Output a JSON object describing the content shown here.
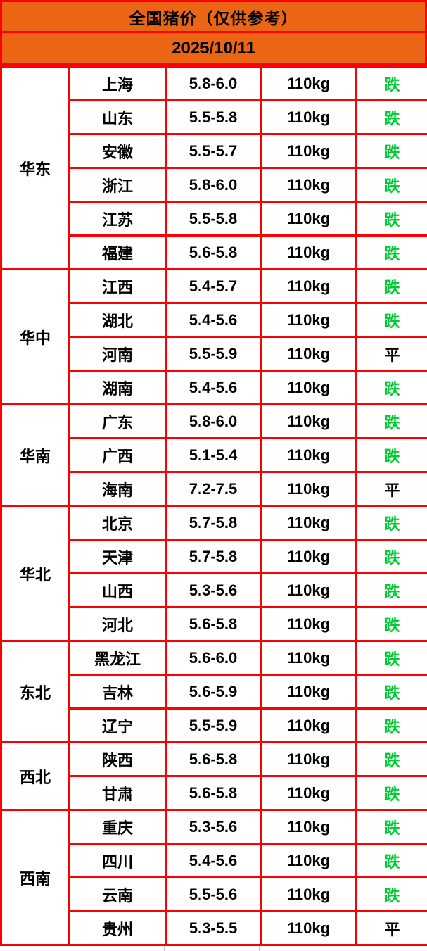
{
  "header": {
    "title": "全国猪价（仅供参考）",
    "date": "2025/10/11"
  },
  "colors": {
    "header_orange": "#EC6514",
    "grid_red": "#FE0000",
    "fall_green": "#00CC33",
    "flat_black": "#000000"
  },
  "table": {
    "regions": [
      {
        "name": "华东",
        "rows": [
          {
            "province": "上海",
            "price": "5.8-6.0",
            "weight": "110kg",
            "trend": "跌"
          },
          {
            "province": "山东",
            "price": "5.5-5.8",
            "weight": "110kg",
            "trend": "跌"
          },
          {
            "province": "安徽",
            "price": "5.5-5.7",
            "weight": "110kg",
            "trend": "跌"
          },
          {
            "province": "浙江",
            "price": "5.8-6.0",
            "weight": "110kg",
            "trend": "跌"
          },
          {
            "province": "江苏",
            "price": "5.5-5.8",
            "weight": "110kg",
            "trend": "跌"
          },
          {
            "province": "福建",
            "price": "5.6-5.8",
            "weight": "110kg",
            "trend": "跌"
          }
        ]
      },
      {
        "name": "华中",
        "rows": [
          {
            "province": "江西",
            "price": "5.4-5.7",
            "weight": "110kg",
            "trend": "跌"
          },
          {
            "province": "湖北",
            "price": "5.4-5.6",
            "weight": "110kg",
            "trend": "跌"
          },
          {
            "province": "河南",
            "price": "5.5-5.9",
            "weight": "110kg",
            "trend": "平"
          },
          {
            "province": "湖南",
            "price": "5.4-5.6",
            "weight": "110kg",
            "trend": "跌"
          }
        ]
      },
      {
        "name": "华南",
        "rows": [
          {
            "province": "广东",
            "price": "5.8-6.0",
            "weight": "110kg",
            "trend": "跌"
          },
          {
            "province": "广西",
            "price": "5.1-5.4",
            "weight": "110kg",
            "trend": "跌"
          },
          {
            "province": "海南",
            "price": "7.2-7.5",
            "weight": "110kg",
            "trend": "平"
          }
        ]
      },
      {
        "name": "华北",
        "rows": [
          {
            "province": "北京",
            "price": "5.7-5.8",
            "weight": "110kg",
            "trend": "跌"
          },
          {
            "province": "天津",
            "price": "5.7-5.8",
            "weight": "110kg",
            "trend": "跌"
          },
          {
            "province": "山西",
            "price": "5.3-5.6",
            "weight": "110kg",
            "trend": "跌"
          },
          {
            "province": "河北",
            "price": "5.6-5.8",
            "weight": "110kg",
            "trend": "跌"
          }
        ]
      },
      {
        "name": "东北",
        "rows": [
          {
            "province": "黑龙江",
            "price": "5.6-6.0",
            "weight": "110kg",
            "trend": "跌"
          },
          {
            "province": "吉林",
            "price": "5.6-5.9",
            "weight": "110kg",
            "trend": "跌"
          },
          {
            "province": "辽宁",
            "price": "5.5-5.9",
            "weight": "110kg",
            "trend": "跌"
          }
        ]
      },
      {
        "name": "西北",
        "rows": [
          {
            "province": "陕西",
            "price": "5.6-5.8",
            "weight": "110kg",
            "trend": "跌"
          },
          {
            "province": "甘肃",
            "price": "5.6-5.8",
            "weight": "110kg",
            "trend": "跌"
          }
        ]
      },
      {
        "name": "西南",
        "rows": [
          {
            "province": "重庆",
            "price": "5.3-5.6",
            "weight": "110kg",
            "trend": "跌"
          },
          {
            "province": "四川",
            "price": "5.4-5.6",
            "weight": "110kg",
            "trend": "跌"
          },
          {
            "province": "云南",
            "price": "5.5-5.6",
            "weight": "110kg",
            "trend": "跌"
          },
          {
            "province": "贵州",
            "price": "5.3-5.5",
            "weight": "110kg",
            "trend": "平"
          }
        ]
      }
    ]
  }
}
